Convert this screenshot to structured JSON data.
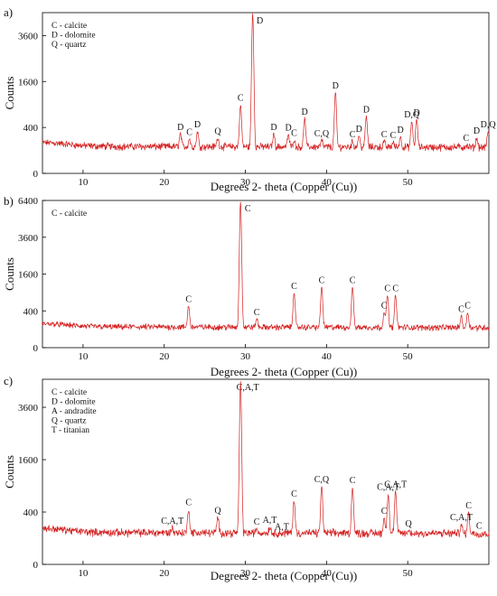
{
  "colors": {
    "trace": "#d42020",
    "axis": "#000000",
    "text": "#111111"
  },
  "chart_data": [
    {
      "type": "line",
      "panel_label": "a)",
      "xlabel": "Degrees 2- theta (Copper (Cu))",
      "ylabel": "Counts",
      "xlim": [
        5,
        60
      ],
      "ylim": [
        0,
        4900
      ],
      "y_scale": "sqrt",
      "x_ticks": [
        10,
        20,
        30,
        40,
        50
      ],
      "y_ticks": [
        0,
        400,
        1600,
        3600
      ],
      "legend": [
        "C - calcite",
        "D - dolomite",
        "Q - quartz"
      ],
      "legend_position": "top-left",
      "baseline": 140,
      "peaks": [
        {
          "x": 22.0,
          "y": 300,
          "label": "D"
        },
        {
          "x": 23.1,
          "y": 230,
          "label": "C"
        },
        {
          "x": 24.1,
          "y": 340,
          "label": "D"
        },
        {
          "x": 26.6,
          "y": 240,
          "label": "Q"
        },
        {
          "x": 29.4,
          "y": 900,
          "label": "C"
        },
        {
          "x": 30.9,
          "y": 4850,
          "label": "D"
        },
        {
          "x": 33.5,
          "y": 300,
          "label": "D"
        },
        {
          "x": 35.3,
          "y": 290,
          "label": "D"
        },
        {
          "x": 36.0,
          "y": 220,
          "label": "C"
        },
        {
          "x": 37.3,
          "y": 580,
          "label": "D"
        },
        {
          "x": 39.4,
          "y": 210,
          "label": "C,Q"
        },
        {
          "x": 41.1,
          "y": 1250,
          "label": "D"
        },
        {
          "x": 43.2,
          "y": 200,
          "label": "C"
        },
        {
          "x": 44.0,
          "y": 270,
          "label": "D"
        },
        {
          "x": 44.9,
          "y": 620,
          "label": "D"
        },
        {
          "x": 47.1,
          "y": 200,
          "label": "C"
        },
        {
          "x": 48.2,
          "y": 190,
          "label": "C"
        },
        {
          "x": 49.1,
          "y": 260,
          "label": "D"
        },
        {
          "x": 50.5,
          "y": 520,
          "label": "D,Q"
        },
        {
          "x": 51.1,
          "y": 560,
          "label": "D"
        },
        {
          "x": 57.2,
          "y": 160,
          "label": "C"
        },
        {
          "x": 58.5,
          "y": 250,
          "label": "D"
        },
        {
          "x": 59.9,
          "y": 340,
          "label": "D,Q"
        }
      ]
    },
    {
      "type": "line",
      "panel_label": "b)",
      "xlabel": "Degrees 2- theta (Copper (Cu))",
      "ylabel": "Counts",
      "xlim": [
        5,
        60
      ],
      "ylim": [
        0,
        6400
      ],
      "y_scale": "sqrt",
      "x_ticks": [
        10,
        20,
        30,
        40,
        50
      ],
      "y_ticks": [
        0,
        400,
        1600,
        3600,
        6400
      ],
      "legend": [
        "C - calcite"
      ],
      "legend_position": "top-left",
      "baseline": 130,
      "peaks": [
        {
          "x": 23.0,
          "y": 520,
          "label": "C"
        },
        {
          "x": 29.4,
          "y": 6300,
          "label": "C"
        },
        {
          "x": 31.4,
          "y": 250,
          "label": "C"
        },
        {
          "x": 36.0,
          "y": 900,
          "label": "C"
        },
        {
          "x": 39.4,
          "y": 1100,
          "label": "C"
        },
        {
          "x": 43.2,
          "y": 1100,
          "label": "C"
        },
        {
          "x": 47.1,
          "y": 380,
          "label": "C"
        },
        {
          "x": 47.5,
          "y": 820,
          "label": "C"
        },
        {
          "x": 48.5,
          "y": 820,
          "label": "C"
        },
        {
          "x": 56.6,
          "y": 300,
          "label": "C"
        },
        {
          "x": 57.4,
          "y": 380,
          "label": "C"
        }
      ]
    },
    {
      "type": "line",
      "panel_label": "c)",
      "xlabel": "Degrees 2- theta (Copper (Cu))",
      "ylabel": "Counts",
      "xlim": [
        5,
        60
      ],
      "ylim": [
        0,
        5000
      ],
      "y_scale": "sqrt",
      "x_ticks": [
        10,
        20,
        30,
        40,
        50
      ],
      "y_ticks": [
        0,
        400,
        1600,
        3600
      ],
      "legend": [
        "C - calcite",
        "D - dolomite",
        "A - andradite",
        "Q - quartz",
        "T - titanian"
      ],
      "legend_position": "top-left",
      "baseline": 150,
      "peaks": [
        {
          "x": 21.0,
          "y": 200,
          "label": "C,A,T"
        },
        {
          "x": 23.0,
          "y": 450,
          "label": "C"
        },
        {
          "x": 26.6,
          "y": 330,
          "label": "Q"
        },
        {
          "x": 29.4,
          "y": 4900,
          "label": "C,A,T"
        },
        {
          "x": 31.4,
          "y": 190,
          "label": "C"
        },
        {
          "x": 33.0,
          "y": 210,
          "label": "A,T"
        },
        {
          "x": 34.5,
          "y": 140,
          "label": "A,T"
        },
        {
          "x": 36.0,
          "y": 600,
          "label": "C"
        },
        {
          "x": 39.4,
          "y": 900,
          "label": "C,Q"
        },
        {
          "x": 43.2,
          "y": 880,
          "label": "C"
        },
        {
          "x": 47.1,
          "y": 320,
          "label": "C"
        },
        {
          "x": 47.6,
          "y": 730,
          "label": "C,A,T"
        },
        {
          "x": 48.5,
          "y": 790,
          "label": "C,A,T"
        },
        {
          "x": 50.1,
          "y": 170,
          "label": "Q"
        },
        {
          "x": 56.6,
          "y": 240,
          "label": "C,A,T"
        },
        {
          "x": 57.5,
          "y": 400,
          "label": "C"
        },
        {
          "x": 58.8,
          "y": 150,
          "label": "C"
        }
      ]
    }
  ]
}
